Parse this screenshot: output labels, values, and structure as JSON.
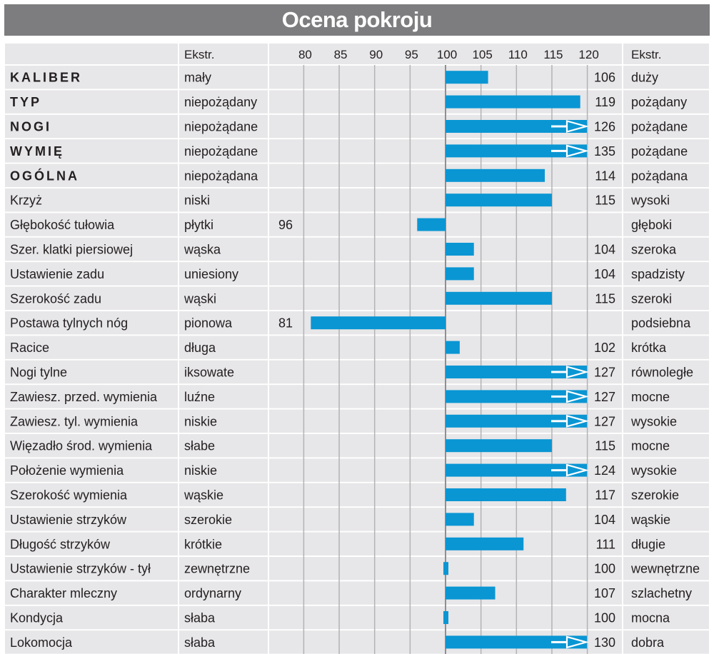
{
  "title": "Ocena pokroju",
  "colors": {
    "title_bg": "#7d7d7f",
    "row_bg": "#e7e6e8",
    "bar": "#0a96d3",
    "grid": "#b3b3b5",
    "arrow": "#ffffff"
  },
  "chart_data": {
    "type": "bar",
    "orientation": "horizontal",
    "title": "Ocena pokroju",
    "header": {
      "left_extreme": "Ekstr.",
      "right_extreme": "Ekstr."
    },
    "x_ticks": [
      80,
      85,
      90,
      95,
      100,
      105,
      110,
      115,
      120
    ],
    "xlim": [
      79,
      121
    ],
    "baseline": 100,
    "grid": true,
    "rows": [
      {
        "trait": "KALIBER",
        "bold": true,
        "low": "mały",
        "value": 106,
        "high": "duży",
        "arrow": false
      },
      {
        "trait": "TYP",
        "bold": true,
        "low": "niepożądany",
        "value": 119,
        "high": "pożądany",
        "arrow": false
      },
      {
        "trait": "NOGI",
        "bold": true,
        "low": "niepożądane",
        "value": 126,
        "high": "pożądane",
        "arrow": true
      },
      {
        "trait": "WYMIĘ",
        "bold": true,
        "low": "niepożądane",
        "value": 135,
        "high": "pożądane",
        "arrow": true
      },
      {
        "trait": "OGÓLNA",
        "bold": true,
        "low": "niepożądana",
        "value": 114,
        "high": "pożądana",
        "arrow": false
      },
      {
        "trait": "Krzyż",
        "bold": false,
        "low": "niski",
        "value": 115,
        "high": "wysoki",
        "arrow": false
      },
      {
        "trait": "Głębokość tułowia",
        "bold": false,
        "low": "płytki",
        "value": 96,
        "high": "głęboki",
        "arrow": false
      },
      {
        "trait": "Szer. klatki piersiowej",
        "bold": false,
        "low": "wąska",
        "value": 104,
        "high": "szeroka",
        "arrow": false
      },
      {
        "trait": "Ustawienie zadu",
        "bold": false,
        "low": "uniesiony",
        "value": 104,
        "high": "spadzisty",
        "arrow": false
      },
      {
        "trait": "Szerokość zadu",
        "bold": false,
        "low": "wąski",
        "value": 115,
        "high": "szeroki",
        "arrow": false
      },
      {
        "trait": "Postawa tylnych nóg",
        "bold": false,
        "low": "pionowa",
        "value": 81,
        "high": "podsiebna",
        "arrow": false
      },
      {
        "trait": "Racice",
        "bold": false,
        "low": "długa",
        "value": 102,
        "high": "krótka",
        "arrow": false
      },
      {
        "trait": "Nogi tylne",
        "bold": false,
        "low": "iksowate",
        "value": 127,
        "high": "równoległe",
        "arrow": true
      },
      {
        "trait": "Zawiesz. przed. wymienia",
        "bold": false,
        "low": "luźne",
        "value": 127,
        "high": "mocne",
        "arrow": true
      },
      {
        "trait": "Zawiesz. tyl. wymienia",
        "bold": false,
        "low": "niskie",
        "value": 127,
        "high": "wysokie",
        "arrow": true
      },
      {
        "trait": "Więzadło środ. wymienia",
        "bold": false,
        "low": "słabe",
        "value": 115,
        "high": "mocne",
        "arrow": false
      },
      {
        "trait": "Położenie wymienia",
        "bold": false,
        "low": "niskie",
        "value": 124,
        "high": "wysokie",
        "arrow": true
      },
      {
        "trait": "Szerokość wymienia",
        "bold": false,
        "low": "wąskie",
        "value": 117,
        "high": "szerokie",
        "arrow": false
      },
      {
        "trait": "Ustawienie strzyków",
        "bold": false,
        "low": "szerokie",
        "value": 104,
        "high": "wąskie",
        "arrow": false
      },
      {
        "trait": "Długość strzyków",
        "bold": false,
        "low": "krótkie",
        "value": 111,
        "high": "długie",
        "arrow": false
      },
      {
        "trait": "Ustawienie strzyków - tył",
        "bold": false,
        "low": "zewnętrzne",
        "value": 100,
        "high": "wewnętrzne",
        "arrow": false
      },
      {
        "trait": "Charakter mleczny",
        "bold": false,
        "low": "ordynarny",
        "value": 107,
        "high": "szlachetny",
        "arrow": false
      },
      {
        "trait": "Kondycja",
        "bold": false,
        "low": "słaba",
        "value": 100,
        "high": "mocna",
        "arrow": false
      },
      {
        "trait": "Lokomocja",
        "bold": false,
        "low": "słaba",
        "value": 130,
        "high": "dobra",
        "arrow": true
      }
    ]
  }
}
